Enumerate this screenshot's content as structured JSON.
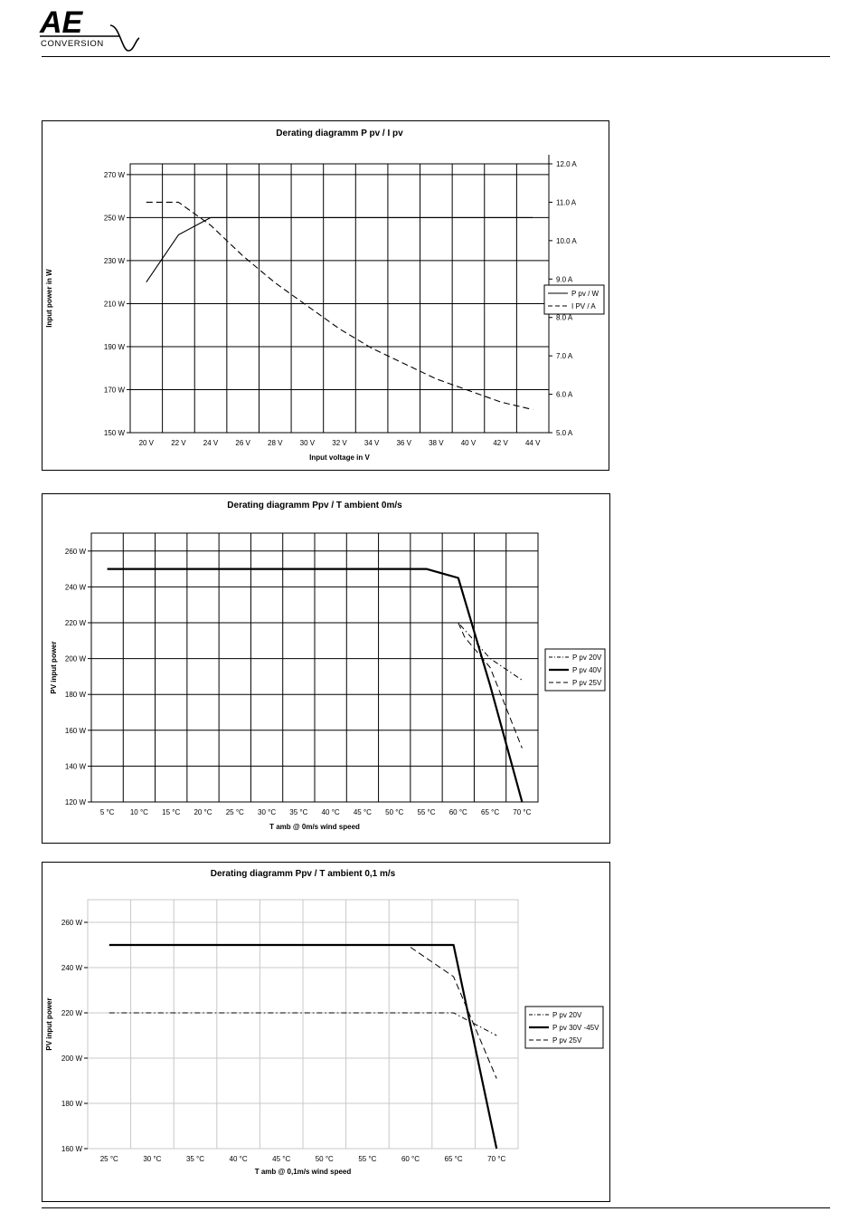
{
  "header": {
    "logo_text": "AE",
    "logo_subtext": "CONVERSION"
  },
  "charts": [
    {
      "title": "Derating diagramm P pv / I pv",
      "xlabel": "Input voltage in V",
      "ylabel": "Input power in W",
      "x_tick_labels": [
        "20 V",
        "22 V",
        "24 V",
        "26 V",
        "28 V",
        "30 V",
        "32 V",
        "34 V",
        "36 V",
        "38 V",
        "40 V",
        "42 V",
        "44 V"
      ],
      "y_tick_labels": [
        "150 W",
        "170 W",
        "190 W",
        "210 W",
        "230 W",
        "250 W",
        "270 W"
      ],
      "y2_tick_labels": [
        "5.0 A",
        "6.0 A",
        "7.0 A",
        "8.0 A",
        "9.0 A",
        "10.0 A",
        "11.0 A",
        "12.0 A"
      ],
      "legend": [
        "P pv / W",
        "I PV / A"
      ]
    },
    {
      "title": "Derating diagramm Ppv / T ambient 0m/s",
      "xlabel": "T amb  @  0m/s wind speed",
      "ylabel": "PV input power",
      "x_tick_labels": [
        "5 °C",
        "10 °C",
        "15 °C",
        "20 °C",
        "25 °C",
        "30 °C",
        "35 °C",
        "40 °C",
        "45 °C",
        "50 °C",
        "55 °C",
        "60 °C",
        "65 °C",
        "70 °C"
      ],
      "y_tick_labels": [
        "120 W",
        "140 W",
        "160 W",
        "180 W",
        "200 W",
        "220 W",
        "240 W",
        "260 W"
      ],
      "legend": [
        "P pv 20V",
        "P pv 40V",
        "P pv 25V"
      ]
    },
    {
      "title": "Derating diagramm Ppv / T ambient 0,1 m/s",
      "xlabel": "T amb  @  0,1m/s wind speed",
      "ylabel": "PV input power",
      "x_tick_labels": [
        "25 °C",
        "30 °C",
        "35 °C",
        "40 °C",
        "45 °C",
        "50 °C",
        "55 °C",
        "60 °C",
        "65 °C",
        "70 °C"
      ],
      "y_tick_labels": [
        "160 W",
        "180 W",
        "200 W",
        "220 W",
        "240 W",
        "260 W"
      ],
      "legend": [
        "P pv 20V",
        "P pv 30V -45V",
        "P pv 25V"
      ]
    }
  ],
  "chart_data": [
    {
      "type": "line",
      "title": "Derating diagramm P pv / I pv",
      "xlabel": "Input voltage in V",
      "ylabel": "Input power in W",
      "xlim": [
        19,
        45
      ],
      "ylim": [
        150,
        275
      ],
      "y2lim": [
        5.0,
        12.0
      ],
      "grid": true,
      "legend_position": "right",
      "series": [
        {
          "name": "P pv / W",
          "axis": "left",
          "style": "solid",
          "x": [
            20,
            22,
            24,
            26,
            28,
            30,
            32,
            34,
            36,
            38,
            40,
            42,
            44
          ],
          "y": [
            220,
            242,
            250,
            250,
            250,
            250,
            250,
            250,
            250,
            250,
            250,
            250,
            250
          ]
        },
        {
          "name": "I PV / A",
          "axis": "right",
          "style": "dashed",
          "x": [
            20,
            22,
            24,
            26,
            28,
            30,
            32,
            34,
            36,
            38,
            40,
            42,
            44
          ],
          "y": [
            11.0,
            11.0,
            10.4,
            9.6,
            8.9,
            8.3,
            7.7,
            7.2,
            6.8,
            6.4,
            6.1,
            5.8,
            5.6
          ]
        }
      ]
    },
    {
      "type": "line",
      "title": "Derating diagramm Ppv / T ambient 0m/s",
      "xlabel": "T amb  @  0m/s wind speed",
      "ylabel": "PV input power",
      "xlim": [
        2.5,
        72.5
      ],
      "ylim": [
        120,
        270
      ],
      "grid": true,
      "legend_position": "right",
      "series": [
        {
          "name": "P pv 20V",
          "style": "dashdot",
          "width": 1,
          "x": [
            5,
            10,
            15,
            20,
            25,
            30,
            35,
            40,
            45,
            50,
            55,
            60,
            65,
            70
          ],
          "y": [
            220,
            220,
            220,
            220,
            220,
            220,
            220,
            220,
            220,
            220,
            220,
            220,
            200,
            188
          ]
        },
        {
          "name": "P pv 40V",
          "style": "solid",
          "width": 2.2,
          "x": [
            5,
            10,
            15,
            20,
            25,
            30,
            35,
            40,
            45,
            50,
            55,
            60,
            65,
            70
          ],
          "y": [
            250,
            250,
            250,
            250,
            250,
            250,
            250,
            250,
            250,
            250,
            250,
            245,
            185,
            120
          ]
        },
        {
          "name": "P pv 25V",
          "style": "dashed",
          "width": 1,
          "x": [
            60,
            61,
            65,
            70
          ],
          "y": [
            220,
            212,
            195,
            150
          ]
        }
      ]
    },
    {
      "type": "line",
      "title": "Derating diagramm Ppv / T ambient 0,1 m/s",
      "xlabel": "T amb  @  0,1m/s wind speed",
      "ylabel": "PV input power",
      "xlim": [
        22.5,
        72.5
      ],
      "ylim": [
        160,
        270
      ],
      "grid": true,
      "legend_position": "right",
      "series": [
        {
          "name": "P pv 20V",
          "style": "dashdot",
          "width": 1,
          "x": [
            25,
            30,
            35,
            40,
            45,
            50,
            55,
            60,
            65,
            70
          ],
          "y": [
            220,
            220,
            220,
            220,
            220,
            220,
            220,
            220,
            220,
            210
          ]
        },
        {
          "name": "P pv 30V -45V",
          "style": "solid",
          "width": 2.2,
          "x": [
            25,
            30,
            35,
            40,
            45,
            50,
            55,
            60,
            65,
            70
          ],
          "y": [
            250,
            250,
            250,
            250,
            250,
            250,
            250,
            250,
            250,
            160
          ]
        },
        {
          "name": "P pv 25V",
          "style": "dashed",
          "width": 1,
          "x": [
            60,
            65,
            70
          ],
          "y": [
            249,
            236,
            191
          ]
        }
      ]
    }
  ]
}
